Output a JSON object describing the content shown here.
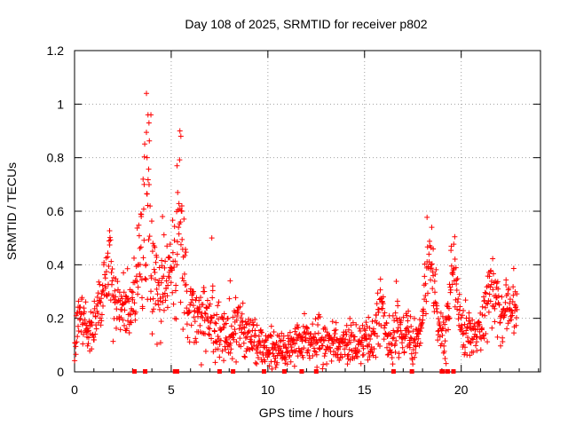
{
  "chart_data": {
    "type": "scatter",
    "title": "Day 108 of 2025, SRMTID for receiver p802",
    "xlabel": "GPS time / hours",
    "ylabel": "SRMTID / TECUs",
    "xlim": [
      0,
      24.1
    ],
    "ylim": [
      0,
      1.2
    ],
    "xticks": [
      0,
      5,
      10,
      15,
      20
    ],
    "xtick_labels": [
      "0",
      "5",
      "10",
      "15",
      "20"
    ],
    "yticks": [
      0,
      0.2,
      0.4,
      0.6,
      0.8,
      1.0,
      1.2
    ],
    "ytick_labels": [
      "0",
      "0.2",
      "0.4",
      "0.6",
      "0.8",
      "1",
      "1.2"
    ],
    "grid": true,
    "marker": "+",
    "color": "#ff0000",
    "series": [
      {
        "name": "SRMTID",
        "profile": [
          [
            0.0,
            0.12,
            0.04
          ],
          [
            0.3,
            0.2,
            0.05
          ],
          [
            0.6,
            0.16,
            0.04
          ],
          [
            0.9,
            0.13,
            0.04
          ],
          [
            1.2,
            0.24,
            0.05
          ],
          [
            1.5,
            0.32,
            0.06
          ],
          [
            1.8,
            0.42,
            0.07
          ],
          [
            2.0,
            0.3,
            0.07
          ],
          [
            2.3,
            0.24,
            0.05
          ],
          [
            2.6,
            0.26,
            0.06
          ],
          [
            2.9,
            0.22,
            0.05
          ],
          [
            3.2,
            0.35,
            0.07
          ],
          [
            3.5,
            0.45,
            0.12
          ],
          [
            3.75,
            0.62,
            0.22
          ],
          [
            4.0,
            0.4,
            0.14
          ],
          [
            4.3,
            0.28,
            0.08
          ],
          [
            4.6,
            0.35,
            0.08
          ],
          [
            4.9,
            0.38,
            0.08
          ],
          [
            5.2,
            0.44,
            0.14
          ],
          [
            5.4,
            0.62,
            0.2
          ],
          [
            5.6,
            0.4,
            0.1
          ],
          [
            5.9,
            0.24,
            0.07
          ],
          [
            6.3,
            0.2,
            0.06
          ],
          [
            6.8,
            0.22,
            0.07
          ],
          [
            7.3,
            0.16,
            0.06
          ],
          [
            7.8,
            0.14,
            0.06
          ],
          [
            8.3,
            0.18,
            0.06
          ],
          [
            8.8,
            0.15,
            0.05
          ],
          [
            9.3,
            0.12,
            0.05
          ],
          [
            9.8,
            0.09,
            0.04
          ],
          [
            10.3,
            0.08,
            0.04
          ],
          [
            10.8,
            0.07,
            0.03
          ],
          [
            11.3,
            0.1,
            0.04
          ],
          [
            11.8,
            0.12,
            0.04
          ],
          [
            12.3,
            0.13,
            0.05
          ],
          [
            12.8,
            0.12,
            0.05
          ],
          [
            13.3,
            0.11,
            0.04
          ],
          [
            13.8,
            0.11,
            0.04
          ],
          [
            14.3,
            0.12,
            0.05
          ],
          [
            14.8,
            0.1,
            0.04
          ],
          [
            15.3,
            0.13,
            0.05
          ],
          [
            15.8,
            0.22,
            0.08
          ],
          [
            16.2,
            0.1,
            0.04
          ],
          [
            16.6,
            0.18,
            0.07
          ],
          [
            17.1,
            0.14,
            0.05
          ],
          [
            17.5,
            0.1,
            0.04
          ],
          [
            17.9,
            0.14,
            0.04
          ],
          [
            18.3,
            0.45,
            0.08
          ],
          [
            18.6,
            0.3,
            0.06
          ],
          [
            18.9,
            0.15,
            0.04
          ],
          [
            19.2,
            0.12,
            0.05
          ],
          [
            19.6,
            0.42,
            0.08
          ],
          [
            19.9,
            0.22,
            0.06
          ],
          [
            20.3,
            0.15,
            0.05
          ],
          [
            20.7,
            0.11,
            0.04
          ],
          [
            21.1,
            0.16,
            0.05
          ],
          [
            21.5,
            0.34,
            0.07
          ],
          [
            21.9,
            0.24,
            0.06
          ],
          [
            22.3,
            0.2,
            0.06
          ],
          [
            22.7,
            0.26,
            0.06
          ],
          [
            22.9,
            0.28,
            0.05
          ]
        ],
        "points_per_hour": 60,
        "outliers": [
          [
            3.72,
            1.04
          ],
          [
            3.8,
            0.96
          ],
          [
            3.95,
            0.96
          ],
          [
            3.85,
            0.93
          ],
          [
            5.45,
            0.9
          ],
          [
            5.5,
            0.88
          ],
          [
            5.3,
            0.77
          ],
          [
            3.75,
            0.8
          ],
          [
            7.1,
            0.5
          ],
          [
            8.05,
            0.34
          ],
          [
            4.55,
            0.58
          ],
          [
            3.6,
            0.7
          ],
          [
            3.45,
            0.58
          ],
          [
            5.55,
            0.62
          ],
          [
            20.4,
            0.22
          ]
        ]
      },
      {
        "name": "zero-level markers",
        "x": [
          3.1,
          3.65,
          5.2,
          5.3,
          7.5,
          8.2,
          9.8,
          10.85,
          11.75,
          12.5,
          16.5,
          17.45,
          19.0,
          19.05,
          19.3,
          19.6
        ],
        "y": [
          0,
          0,
          0,
          0,
          0,
          0,
          0,
          0,
          0,
          0,
          0,
          0,
          0,
          0,
          0,
          0
        ]
      }
    ]
  }
}
